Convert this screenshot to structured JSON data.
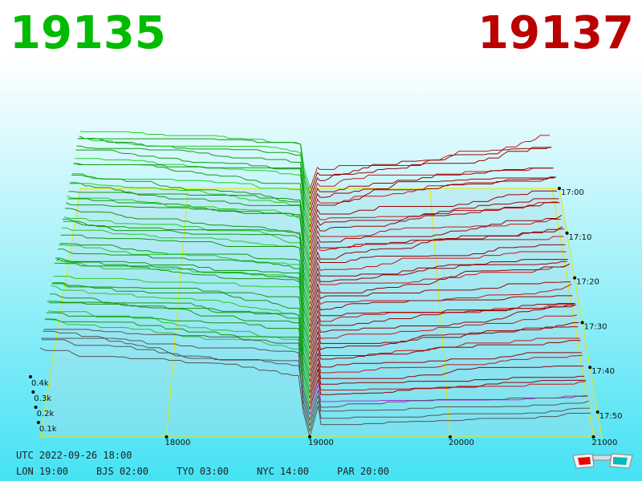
{
  "header": {
    "bid": "19135",
    "ask": "19137"
  },
  "price_axis": [
    "18000",
    "19000",
    "20000",
    "21000"
  ],
  "time_axis": [
    "17:00",
    "17:10",
    "17:20",
    "17:30",
    "17:40",
    "17:50"
  ],
  "depth_axis": [
    "0.4k",
    "0.3k",
    "0.2k",
    "0.1k"
  ],
  "clocks": {
    "utc": "UTC 2022-09-26 18:00",
    "cities": [
      "LON 19:00",
      "BJS 02:00",
      "TYO 03:00",
      "NYC 14:00",
      "PAR 20:00"
    ]
  }
}
